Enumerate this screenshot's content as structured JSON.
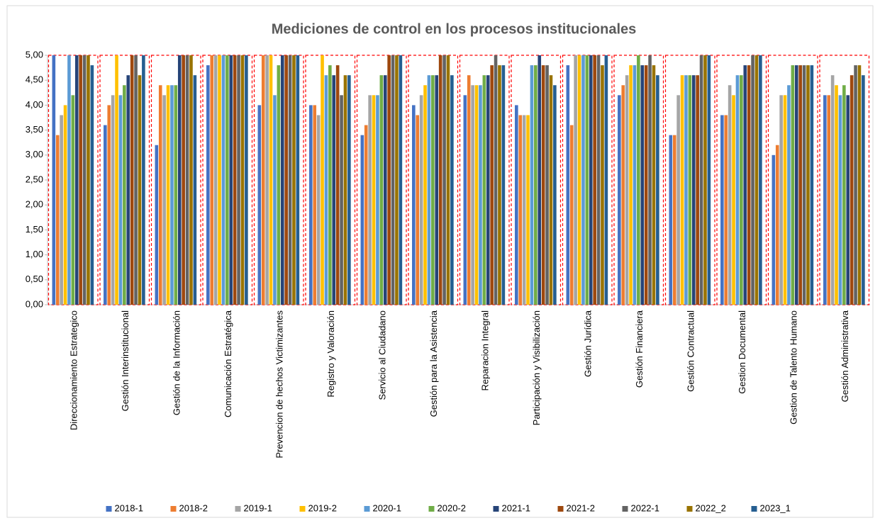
{
  "chart_data": {
    "type": "bar",
    "title": "Mediciones de control en los procesos institucionales",
    "categories": [
      "Direccionamiento  Estrategico",
      "Gestión Interinstitucional",
      "Gestión de la Información",
      "Comunicación Estratégica",
      "Prevencion de hechos Victimizantes",
      "Registro y Valoración",
      "Servicio al Ciudadano",
      "Gestión para la Asistencia",
      "Reparacion Integral",
      "Participación y Visibilización",
      "Gestión Jurídica",
      "Gestión Financiera",
      "Gestión Contractual",
      "Gestion Documental",
      "Gestion de Talento Humano",
      "Gestión Administrativa"
    ],
    "series": [
      {
        "name": "2018-1",
        "color": "#4472c4",
        "values": [
          5.0,
          3.6,
          3.2,
          4.8,
          4.0,
          4.0,
          3.4,
          4.0,
          4.2,
          4.0,
          4.8,
          4.2,
          3.4,
          3.8,
          3.0,
          4.2
        ]
      },
      {
        "name": "2018-2",
        "color": "#ed7d31",
        "values": [
          3.4,
          4.0,
          4.4,
          5.0,
          5.0,
          4.0,
          3.6,
          3.8,
          4.6,
          3.8,
          3.6,
          4.4,
          3.4,
          3.8,
          3.2,
          4.2
        ]
      },
      {
        "name": "2019-1",
        "color": "#a5a5a5",
        "values": [
          3.8,
          4.2,
          4.2,
          5.0,
          5.0,
          3.8,
          4.2,
          4.2,
          4.4,
          3.8,
          5.0,
          4.6,
          4.2,
          4.4,
          4.2,
          4.6
        ]
      },
      {
        "name": "2019-2",
        "color": "#ffc000",
        "values": [
          4.0,
          5.0,
          4.4,
          5.0,
          5.0,
          5.0,
          4.2,
          4.4,
          4.4,
          3.8,
          5.0,
          4.8,
          4.6,
          4.2,
          4.2,
          4.4
        ]
      },
      {
        "name": "2020-1",
        "color": "#5b9bd5",
        "values": [
          5.0,
          4.2,
          4.4,
          5.0,
          4.2,
          4.6,
          4.2,
          4.6,
          4.4,
          4.8,
          5.0,
          4.8,
          4.6,
          4.6,
          4.4,
          4.2
        ]
      },
      {
        "name": "2020-2",
        "color": "#70ad47",
        "values": [
          4.2,
          4.4,
          4.4,
          5.0,
          4.8,
          4.8,
          4.6,
          4.6,
          4.6,
          4.8,
          5.0,
          5.0,
          4.6,
          4.6,
          4.8,
          4.4
        ]
      },
      {
        "name": "2021-1",
        "color": "#264478",
        "values": [
          5.0,
          4.6,
          5.0,
          5.0,
          5.0,
          4.6,
          4.6,
          4.6,
          4.6,
          5.0,
          5.0,
          4.8,
          4.6,
          4.8,
          4.8,
          4.2
        ]
      },
      {
        "name": "2021-2",
        "color": "#9e480e",
        "values": [
          5.0,
          5.0,
          5.0,
          5.0,
          5.0,
          4.8,
          5.0,
          5.0,
          4.8,
          4.8,
          5.0,
          4.8,
          4.6,
          4.8,
          4.8,
          4.6
        ]
      },
      {
        "name": "2022-1",
        "color": "#636363",
        "values": [
          5.0,
          5.0,
          5.0,
          5.0,
          5.0,
          4.2,
          5.0,
          5.0,
          5.0,
          4.8,
          5.0,
          5.0,
          5.0,
          5.0,
          4.8,
          4.8
        ]
      },
      {
        "name": "2022_2",
        "color": "#997300",
        "values": [
          5.0,
          4.6,
          5.0,
          5.0,
          5.0,
          4.6,
          5.0,
          5.0,
          4.8,
          4.6,
          4.8,
          4.8,
          5.0,
          5.0,
          4.8,
          4.8
        ]
      },
      {
        "name": "2023_1",
        "color": "#255e91",
        "values": [
          4.8,
          5.0,
          4.6,
          5.0,
          5.0,
          4.6,
          5.0,
          4.6,
          4.8,
          4.4,
          5.0,
          4.6,
          5.0,
          5.0,
          4.8,
          4.6
        ]
      }
    ],
    "ylim": [
      0,
      5
    ],
    "yticks": [
      {
        "value": 0,
        "label": "0,00"
      },
      {
        "value": 0.5,
        "label": "0,50"
      },
      {
        "value": 1,
        "label": "1,00"
      },
      {
        "value": 1.5,
        "label": "1,50"
      },
      {
        "value": 2,
        "label": "2,00"
      },
      {
        "value": 2.5,
        "label": "2,50"
      },
      {
        "value": 3,
        "label": "3,00"
      },
      {
        "value": 3.5,
        "label": "3,50"
      },
      {
        "value": 4,
        "label": "4,00"
      },
      {
        "value": 4.5,
        "label": "4,50"
      },
      {
        "value": 5,
        "label": "5,00"
      }
    ],
    "legend": "bottom"
  }
}
